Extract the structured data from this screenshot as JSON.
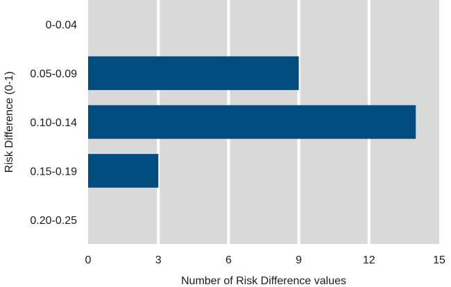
{
  "chart_data": {
    "type": "bar",
    "orientation": "horizontal",
    "categories": [
      "0-0.04",
      "0.05-0.09",
      "0.10-0.14",
      "0.15-0.19",
      "0.20-0.25"
    ],
    "values": [
      0,
      9,
      14,
      3,
      0
    ],
    "xlabel": "Number of Risk Difference values",
    "ylabel": "Risk Difference (0-1)",
    "xlim": [
      0,
      15
    ],
    "xticks": [
      0,
      3,
      6,
      9,
      12,
      15
    ],
    "grid": true,
    "legend": "none",
    "colors": {
      "bar": "#004c7f",
      "panel": "#d9d9d9",
      "grid": "#ffffff"
    }
  }
}
